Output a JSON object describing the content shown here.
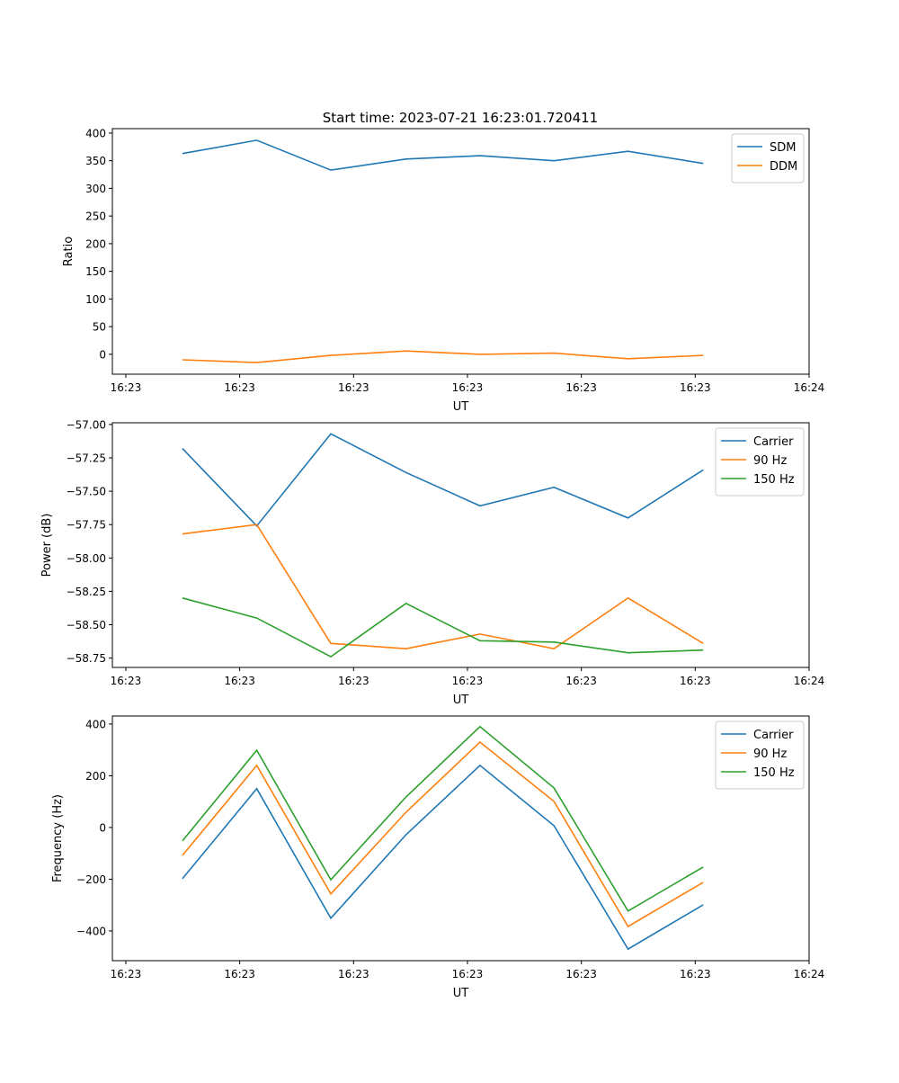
{
  "title": "Start time: 2023-07-21 16:23:01.720411",
  "colors": {
    "c0": "#1f77b4",
    "c1": "#ff7f0e",
    "c2": "#2ca02c"
  },
  "chart_data": [
    {
      "type": "line",
      "xlabel": "UT",
      "ylabel": "Ratio",
      "x": [
        4.97,
        11.5,
        18.0,
        24.6,
        31.1,
        37.6,
        44.1,
        50.7
      ],
      "xlim": [
        -1.18,
        60
      ],
      "x_ticks": [
        0,
        10,
        20,
        30,
        40,
        50,
        60
      ],
      "x_tick_labels": [
        "16:23",
        "16:23",
        "16:23",
        "16:23",
        "16:23",
        "16:23",
        "16:24"
      ],
      "ylim": [
        -36,
        408
      ],
      "y_ticks": [
        0,
        50,
        100,
        150,
        200,
        250,
        300,
        350,
        400
      ],
      "y_tick_labels": [
        "0",
        "50",
        "100",
        "150",
        "200",
        "250",
        "300",
        "350",
        "400"
      ],
      "legend": "top-right",
      "series": [
        {
          "name": "SDM",
          "color": "#1f77b4",
          "values": [
            363,
            387,
            333,
            353,
            359,
            350,
            367,
            345
          ]
        },
        {
          "name": "DDM",
          "color": "#ff7f0e",
          "values": [
            -10,
            -15,
            -2,
            6,
            0,
            2,
            -8,
            -2
          ]
        }
      ]
    },
    {
      "type": "line",
      "xlabel": "UT",
      "ylabel": "Power (dB)",
      "x": [
        4.97,
        11.5,
        18.0,
        24.6,
        31.1,
        37.6,
        44.1,
        50.7
      ],
      "xlim": [
        -1.18,
        60
      ],
      "x_ticks": [
        0,
        10,
        20,
        30,
        40,
        50,
        60
      ],
      "x_tick_labels": [
        "16:23",
        "16:23",
        "16:23",
        "16:23",
        "16:23",
        "16:23",
        "16:24"
      ],
      "ylim": [
        -58.82,
        -56.987
      ],
      "y_ticks": [
        -57.0,
        -57.25,
        -57.5,
        -57.75,
        -58.0,
        -58.25,
        -58.5,
        -58.75
      ],
      "y_tick_labels": [
        "−57.00",
        "−57.25",
        "−57.50",
        "−57.75",
        "−58.00",
        "−58.25",
        "−58.50",
        "−58.75"
      ],
      "legend": "top-right",
      "series": [
        {
          "name": "Carrier",
          "color": "#1f77b4",
          "values": [
            -57.18,
            -57.76,
            -57.07,
            -57.36,
            -57.61,
            -57.47,
            -57.7,
            -57.34
          ]
        },
        {
          "name": "90 Hz",
          "color": "#ff7f0e",
          "values": [
            -57.82,
            -57.75,
            -58.64,
            -58.68,
            -58.57,
            -58.68,
            -58.3,
            -58.64
          ]
        },
        {
          "name": "150 Hz",
          "color": "#2ca02c",
          "values": [
            -58.3,
            -58.45,
            -58.74,
            -58.34,
            -58.62,
            -58.63,
            -58.71,
            -58.69
          ]
        }
      ]
    },
    {
      "type": "line",
      "xlabel": "UT",
      "ylabel": "Frequency (Hz)",
      "x": [
        4.97,
        11.5,
        18.0,
        24.6,
        31.1,
        37.6,
        44.1,
        50.7
      ],
      "xlim": [
        -1.18,
        60
      ],
      "x_ticks": [
        0,
        10,
        20,
        30,
        40,
        50,
        60
      ],
      "x_tick_labels": [
        "16:23",
        "16:23",
        "16:23",
        "16:23",
        "16:23",
        "16:23",
        "16:24"
      ],
      "ylim": [
        -515,
        431
      ],
      "y_ticks": [
        -400,
        -200,
        0,
        200,
        400
      ],
      "y_tick_labels": [
        "−400",
        "−200",
        "0",
        "200",
        "400"
      ],
      "legend": "top-right",
      "series": [
        {
          "name": "Carrier",
          "color": "#1f77b4",
          "values": [
            -198,
            150,
            -351,
            -28,
            240,
            7,
            -470,
            -299
          ]
        },
        {
          "name": "90 Hz",
          "color": "#ff7f0e",
          "values": [
            -108,
            240,
            -257,
            59,
            330,
            101,
            -383,
            -212
          ]
        },
        {
          "name": "150 Hz",
          "color": "#2ca02c",
          "values": [
            -52,
            299,
            -202,
            118,
            390,
            153,
            -323,
            -153
          ]
        }
      ]
    }
  ]
}
